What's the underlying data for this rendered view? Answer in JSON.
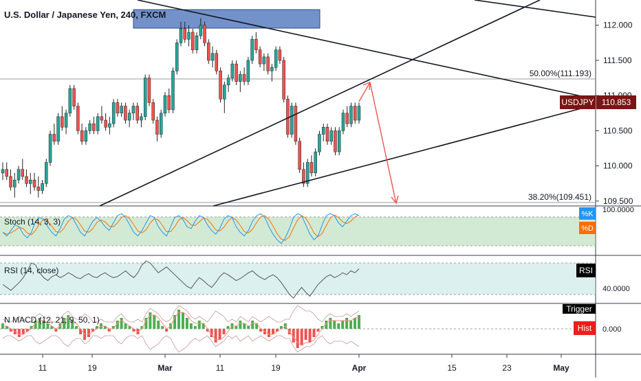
{
  "chart_data": {
    "type": "candlestick",
    "title": "U.S. Dollar / Japanese Yen, 240, FXCM",
    "symbol": "USDJPY",
    "last_price": "110.853",
    "colors": {
      "up": "#26a69a",
      "down": "#ef5350",
      "symbol_badge": "#7b1414",
      "stoch_band": "#a5d6a7",
      "rsi_band": "#b2dfdb",
      "zone": "#5b7fbf",
      "arrow": "#ef5350",
      "hist_badge": "#ef1c1c"
    },
    "price_axis": {
      "ticks": [
        "112.000",
        "111.500",
        "111.000",
        "110.500",
        "110.000",
        "109.500"
      ],
      "tick_values": [
        112.0,
        111.5,
        111.0,
        110.5,
        110.0,
        109.5
      ],
      "range": [
        109.45,
        112.3
      ]
    },
    "time_axis": {
      "ticks": [
        "11",
        "19",
        "Mar",
        "11",
        "19",
        "Apr",
        "15",
        "23",
        "May"
      ]
    },
    "candles": [
      [
        109.9,
        110.05,
        109.8,
        109.95
      ],
      [
        109.95,
        110.05,
        109.8,
        109.85
      ],
      [
        109.85,
        109.95,
        109.65,
        109.7
      ],
      [
        109.7,
        109.9,
        109.55,
        109.8
      ],
      [
        109.8,
        110.0,
        109.75,
        109.95
      ],
      [
        109.95,
        110.1,
        109.8,
        109.85
      ],
      [
        109.85,
        109.95,
        109.7,
        109.75
      ],
      [
        109.75,
        109.9,
        109.6,
        109.8
      ],
      [
        109.8,
        109.9,
        109.65,
        109.7
      ],
      [
        109.7,
        109.85,
        109.55,
        109.65
      ],
      [
        109.65,
        109.8,
        109.6,
        109.75
      ],
      [
        109.75,
        110.1,
        109.7,
        110.05
      ],
      [
        110.05,
        110.5,
        110.0,
        110.45
      ],
      [
        110.45,
        110.6,
        110.3,
        110.35
      ],
      [
        110.35,
        110.75,
        110.3,
        110.7
      ],
      [
        110.7,
        110.85,
        110.5,
        110.55
      ],
      [
        110.55,
        110.8,
        110.45,
        110.75
      ],
      [
        110.75,
        111.15,
        110.7,
        111.1
      ],
      [
        111.1,
        111.15,
        110.8,
        110.85
      ],
      [
        110.85,
        110.9,
        110.45,
        110.5
      ],
      [
        110.5,
        110.6,
        110.3,
        110.35
      ],
      [
        110.35,
        110.55,
        110.3,
        110.5
      ],
      [
        110.5,
        110.65,
        110.45,
        110.6
      ],
      [
        110.6,
        110.7,
        110.45,
        110.5
      ],
      [
        110.5,
        110.75,
        110.45,
        110.7
      ],
      [
        110.7,
        110.85,
        110.6,
        110.65
      ],
      [
        110.65,
        110.75,
        110.5,
        110.55
      ],
      [
        110.55,
        110.7,
        110.45,
        110.6
      ],
      [
        110.6,
        110.95,
        110.55,
        110.9
      ],
      [
        110.9,
        110.95,
        110.7,
        110.75
      ],
      [
        110.75,
        110.9,
        110.7,
        110.85
      ],
      [
        110.85,
        110.9,
        110.6,
        110.65
      ],
      [
        110.65,
        110.8,
        110.55,
        110.75
      ],
      [
        110.75,
        110.9,
        110.65,
        110.85
      ],
      [
        110.85,
        110.9,
        110.6,
        110.65
      ],
      [
        110.65,
        110.75,
        110.55,
        110.7
      ],
      [
        110.7,
        111.3,
        110.65,
        111.25
      ],
      [
        111.25,
        111.3,
        110.85,
        110.9
      ],
      [
        110.9,
        110.95,
        110.6,
        110.65
      ],
      [
        110.65,
        110.7,
        110.35,
        110.45
      ],
      [
        110.45,
        110.8,
        110.4,
        110.75
      ],
      [
        110.75,
        111.05,
        110.7,
        111.0
      ],
      [
        111.0,
        111.1,
        110.75,
        110.8
      ],
      [
        110.8,
        111.4,
        110.75,
        111.35
      ],
      [
        111.35,
        111.8,
        111.3,
        111.75
      ],
      [
        111.75,
        112.05,
        111.7,
        111.95
      ],
      [
        111.95,
        112.05,
        111.75,
        111.8
      ],
      [
        111.8,
        112.0,
        111.7,
        111.9
      ],
      [
        111.9,
        111.95,
        111.6,
        111.65
      ],
      [
        111.65,
        111.9,
        111.6,
        111.85
      ],
      [
        111.85,
        112.1,
        111.8,
        112.0
      ],
      [
        112.0,
        112.05,
        111.7,
        111.75
      ],
      [
        111.75,
        111.8,
        111.45,
        111.5
      ],
      [
        111.5,
        111.7,
        111.4,
        111.6
      ],
      [
        111.6,
        111.65,
        111.3,
        111.35
      ],
      [
        111.35,
        111.4,
        110.9,
        110.95
      ],
      [
        110.95,
        111.2,
        110.75,
        111.15
      ],
      [
        111.15,
        111.3,
        111.05,
        111.25
      ],
      [
        111.25,
        111.5,
        111.2,
        111.45
      ],
      [
        111.45,
        111.5,
        111.15,
        111.2
      ],
      [
        111.2,
        111.35,
        111.05,
        111.3
      ],
      [
        111.3,
        111.4,
        111.15,
        111.2
      ],
      [
        111.2,
        111.55,
        111.15,
        111.5
      ],
      [
        111.5,
        111.85,
        111.45,
        111.8
      ],
      [
        111.8,
        111.9,
        111.6,
        111.65
      ],
      [
        111.65,
        111.7,
        111.4,
        111.45
      ],
      [
        111.45,
        111.6,
        111.35,
        111.55
      ],
      [
        111.55,
        111.6,
        111.3,
        111.35
      ],
      [
        111.35,
        111.45,
        111.2,
        111.4
      ],
      [
        111.4,
        111.7,
        111.35,
        111.65
      ],
      [
        111.65,
        111.7,
        111.45,
        111.5
      ],
      [
        111.5,
        111.55,
        110.9,
        110.95
      ],
      [
        110.95,
        111.0,
        110.4,
        110.45
      ],
      [
        110.45,
        110.9,
        110.4,
        110.85
      ],
      [
        110.85,
        110.9,
        110.3,
        110.35
      ],
      [
        110.35,
        110.4,
        109.9,
        109.95
      ],
      [
        109.95,
        110.05,
        109.7,
        109.75
      ],
      [
        109.75,
        110.1,
        109.7,
        110.05
      ],
      [
        110.05,
        110.15,
        109.85,
        109.9
      ],
      [
        109.9,
        110.25,
        109.85,
        110.2
      ],
      [
        110.2,
        110.5,
        110.15,
        110.45
      ],
      [
        110.45,
        110.6,
        110.35,
        110.55
      ],
      [
        110.55,
        110.6,
        110.3,
        110.35
      ],
      [
        110.35,
        110.55,
        110.3,
        110.5
      ],
      [
        110.5,
        110.55,
        110.15,
        110.2
      ],
      [
        110.2,
        110.55,
        110.15,
        110.5
      ],
      [
        110.5,
        110.8,
        110.45,
        110.75
      ],
      [
        110.75,
        110.85,
        110.55,
        110.6
      ],
      [
        110.6,
        110.9,
        110.55,
        110.85
      ],
      [
        110.85,
        110.9,
        110.6,
        110.65
      ],
      [
        110.65,
        110.9,
        110.6,
        110.85
      ]
    ],
    "annotations": {
      "fib_50": "50.00%(111.193)",
      "fib_382": "38.20%(109.451)"
    }
  },
  "panes": {
    "stoch": {
      "label": "Stoch (14, 3, 3)",
      "k_label": "%K",
      "d_label": "%D",
      "axis_label": "100.0000",
      "k": [
        40,
        30,
        45,
        60,
        55,
        35,
        25,
        40,
        70,
        80,
        75,
        55,
        40,
        30,
        50,
        75,
        85,
        80,
        60,
        40,
        30,
        50,
        70,
        80,
        70,
        55,
        45,
        65,
        85,
        90,
        80,
        60,
        40,
        30,
        45,
        65,
        85,
        80,
        55,
        40,
        30,
        55,
        80,
        85,
        75,
        55,
        50,
        70,
        85,
        80,
        60,
        45,
        35,
        50,
        75,
        85,
        80,
        55,
        40,
        30,
        45,
        70,
        85,
        90,
        80,
        55,
        35,
        20,
        10,
        25,
        50,
        80,
        90,
        85,
        60,
        35,
        20,
        30,
        60,
        85,
        90,
        85,
        65,
        55,
        70,
        85,
        90,
        85
      ]
    },
    "rsi": {
      "label": "RSI (14, close)",
      "badge": "RSI",
      "axis_label": "40.0000",
      "values": [
        48,
        45,
        42,
        46,
        50,
        55,
        62,
        70,
        68,
        60,
        55,
        52,
        56,
        58,
        55,
        57,
        60,
        58,
        55,
        54,
        57,
        59,
        56,
        55,
        58,
        60,
        57,
        55,
        56,
        59,
        62,
        58,
        55,
        60,
        68,
        72,
        70,
        65,
        60,
        63,
        66,
        62,
        58,
        54,
        50,
        46,
        44,
        50,
        55,
        52,
        48,
        45,
        50,
        56,
        60,
        58,
        55,
        52,
        54,
        57,
        60,
        62,
        58,
        55,
        53,
        56,
        58,
        55,
        50,
        44,
        38,
        34,
        40,
        45,
        40,
        36,
        42,
        48,
        52,
        56,
        58,
        55,
        57,
        60,
        58,
        62,
        60,
        64
      ]
    },
    "macd": {
      "label": "N MACD (12, 21, 9, 50, 1)",
      "trigger_label": "Trigger",
      "hist_label": "Hist",
      "axis_label": "0.000",
      "hist": [
        0.2,
        0.1,
        -0.1,
        -0.2,
        -0.3,
        -0.2,
        -0.1,
        0.1,
        0.3,
        0.4,
        0.3,
        0.2,
        0.1,
        -0.1,
        0.2,
        0.4,
        0.5,
        0.3,
        0.1,
        -0.2,
        -0.4,
        -0.3,
        -0.1,
        0.1,
        0.2,
        0.1,
        -0.1,
        0.1,
        0.3,
        0.4,
        0.2,
        0.1,
        -0.1,
        -0.2,
        0.1,
        0.4,
        0.6,
        0.5,
        0.3,
        0.1,
        -0.1,
        0.2,
        0.5,
        0.7,
        0.6,
        0.4,
        0.2,
        0.1,
        0.3,
        0.2,
        -0.1,
        -0.3,
        -0.5,
        -0.4,
        -0.2,
        0.1,
        0.2,
        0.1,
        0.3,
        0.2,
        0.1,
        0.3,
        0.2,
        -0.1,
        -0.2,
        -0.3,
        -0.2,
        -0.1,
        0.1,
        0.2,
        -0.2,
        -0.5,
        -0.7,
        -0.6,
        -0.4,
        -0.5,
        -0.3,
        -0.1,
        0.1,
        0.3,
        0.4,
        0.3,
        0.2,
        0.3,
        0.4,
        0.3,
        0.4,
        0.5
      ],
      "trigger": [
        0.1,
        0.1,
        0.0,
        -0.1,
        -0.2,
        -0.2,
        -0.1,
        0.0,
        0.2,
        0.3,
        0.3,
        0.2,
        0.1,
        0.0,
        0.1,
        0.3,
        0.4,
        0.3,
        0.2,
        0.0,
        -0.2,
        -0.2,
        -0.1,
        0.0,
        0.1,
        0.1,
        0.0,
        0.0,
        0.2,
        0.3,
        0.2,
        0.1,
        0.0,
        -0.1,
        0.0,
        0.3,
        0.5,
        0.5,
        0.4,
        0.2,
        0.0,
        0.1,
        0.4,
        0.6,
        0.6,
        0.5,
        0.3,
        0.2,
        0.2,
        0.2,
        0.0,
        -0.2,
        -0.4,
        -0.4,
        -0.3,
        -0.1,
        0.1,
        0.1,
        0.2,
        0.2,
        0.1,
        0.2,
        0.2,
        0.0,
        -0.1,
        -0.2,
        -0.2,
        -0.1,
        0.0,
        0.1,
        -0.1,
        -0.3,
        -0.5,
        -0.6,
        -0.5,
        -0.5,
        -0.4,
        -0.2,
        0.0,
        0.2,
        0.3,
        0.3,
        0.3,
        0.3,
        0.3,
        0.3,
        0.4,
        0.4
      ]
    }
  }
}
